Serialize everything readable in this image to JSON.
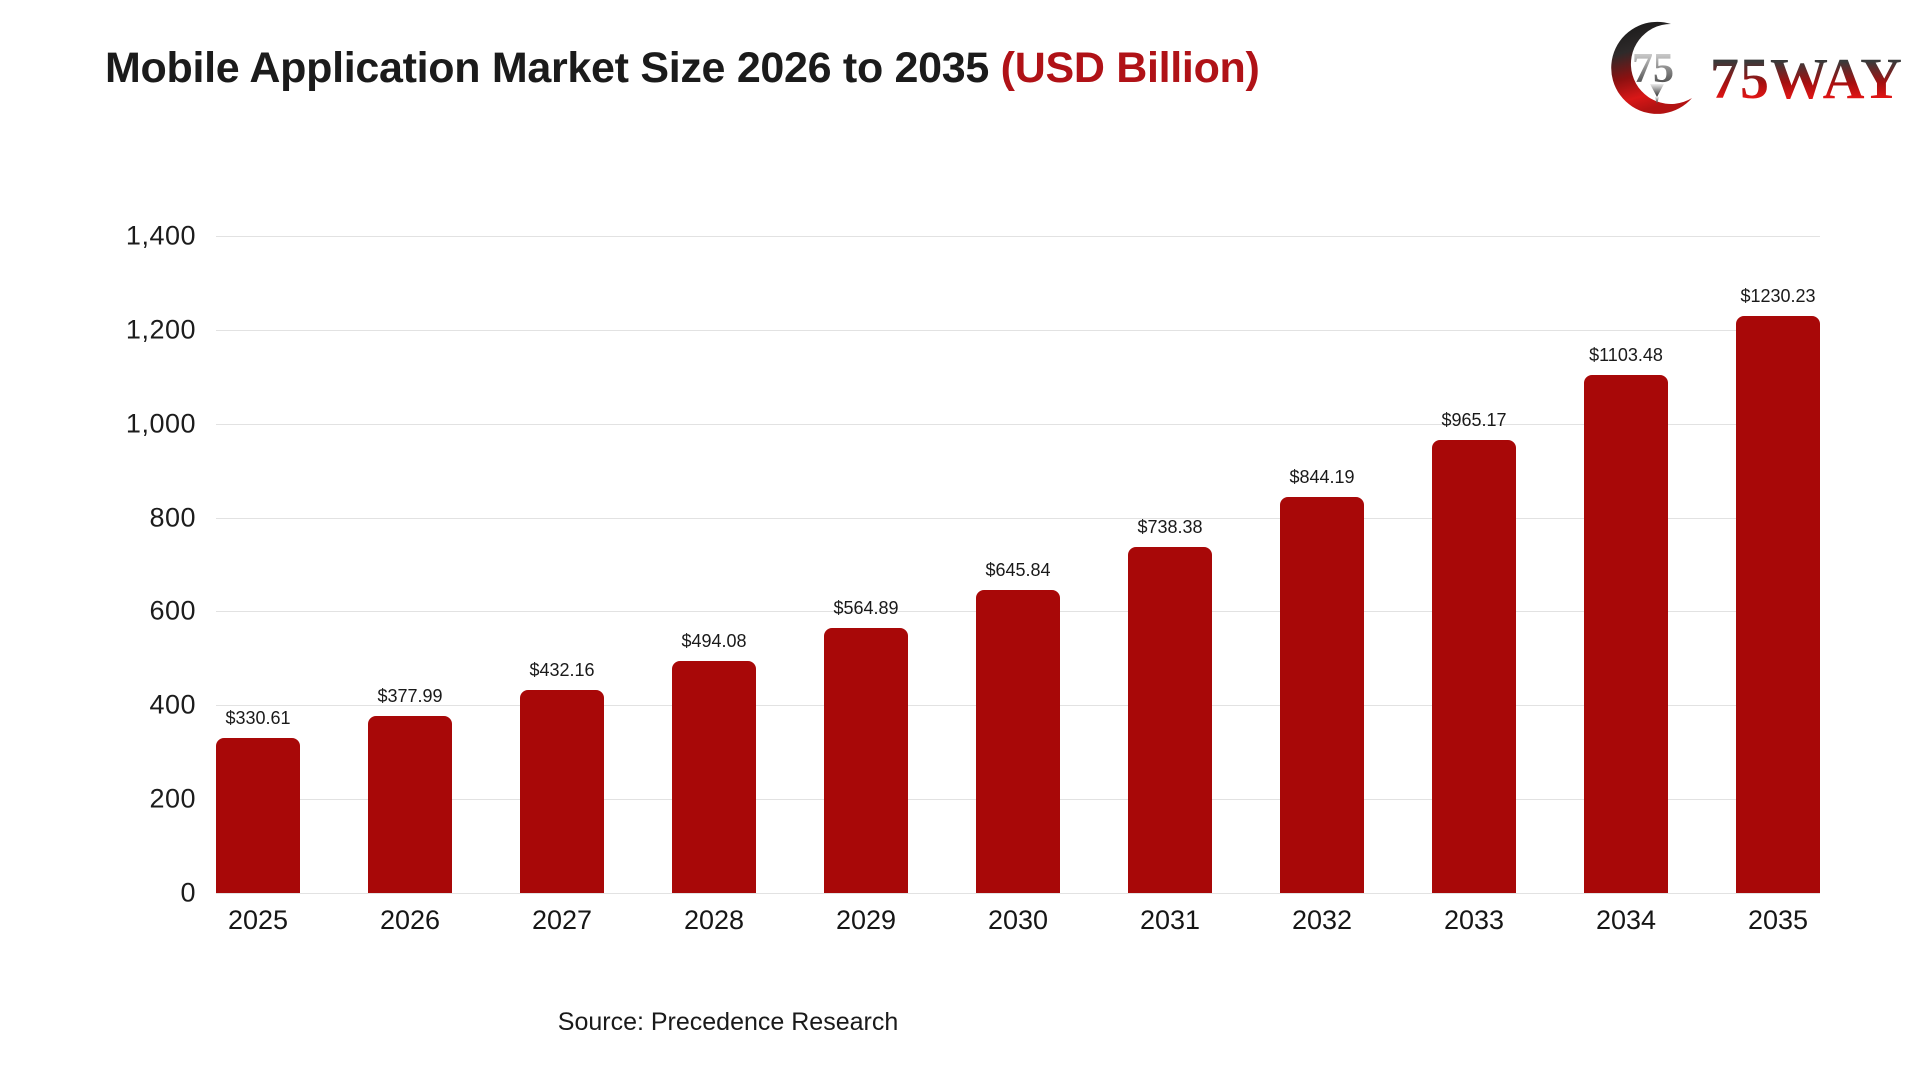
{
  "header": {
    "title_main": "Mobile Application Market Size 2026 to 2035 ",
    "title_accent": "(USD Billion)",
    "logo_text": "75WAY"
  },
  "footer": {
    "source": "Source: Precedence Research"
  },
  "colors": {
    "bar": "#A80808",
    "title_accent": "#B01217",
    "gridline": "#E2E2E2"
  },
  "chart_data": {
    "type": "bar",
    "title": "Mobile Application Market Size 2026 to 2035 (USD Billion)",
    "categories": [
      "2025",
      "2026",
      "2027",
      "2028",
      "2029",
      "2030",
      "2031",
      "2032",
      "2033",
      "2034",
      "2035"
    ],
    "values": [
      330.61,
      377.99,
      432.16,
      494.08,
      564.89,
      645.84,
      738.38,
      844.19,
      965.17,
      1103.48,
      1230.23
    ],
    "value_labels": [
      "$330.61",
      "$377.99",
      "$432.16",
      "$494.08",
      "$564.89",
      "$645.84",
      "$738.38",
      "$844.19",
      "$965.17",
      "$1103.48",
      "$1230.23"
    ],
    "xlabel": "",
    "ylabel": "",
    "ylim": [
      0,
      1400
    ],
    "ytick_labels": [
      "0",
      "200",
      "400",
      "600",
      "800",
      "1,000",
      "1,200",
      "1,400"
    ],
    "grid": "horizontal",
    "legend": "none",
    "bar_color": "#A80808"
  }
}
